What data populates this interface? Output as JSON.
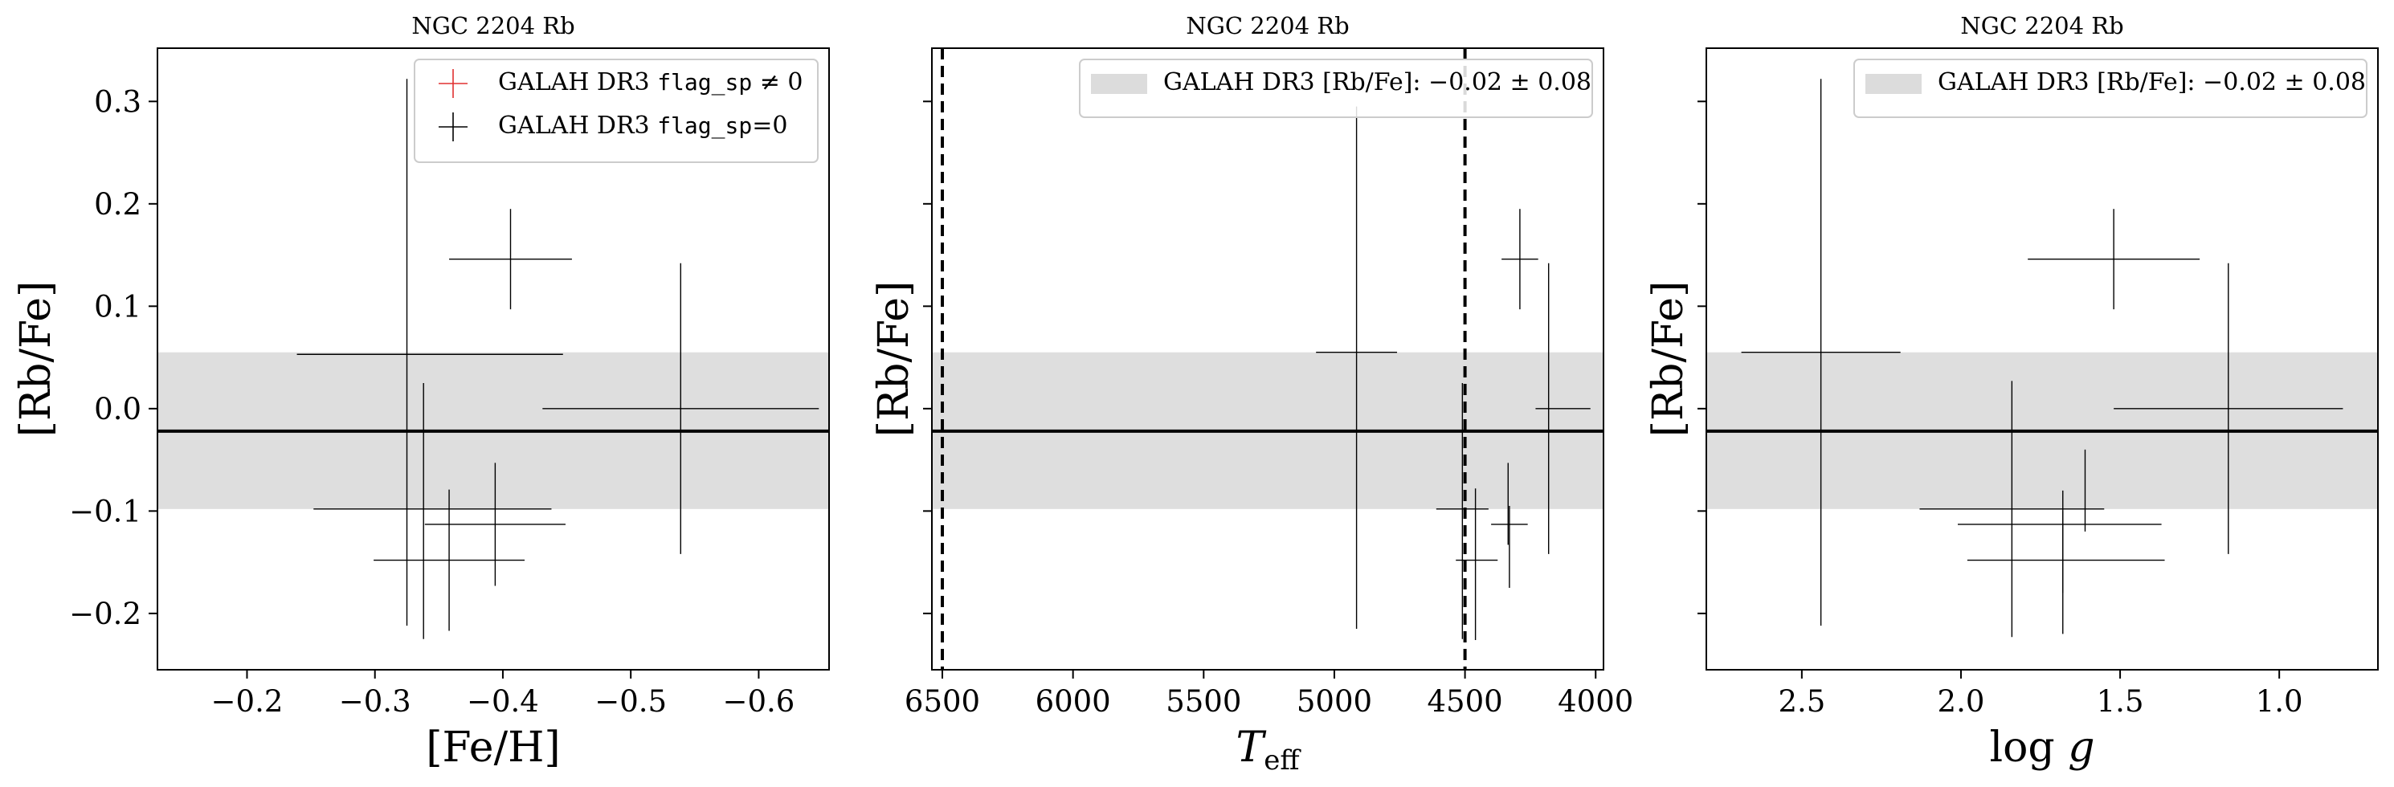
{
  "chart_data": [
    {
      "type": "scatter",
      "title": "NGC 2204 Rb",
      "xlabel": "[Fe/H]",
      "ylabel": "[Rb/Fe]",
      "xlim": [
        -0.13,
        -0.655
      ],
      "ylim": [
        -0.255,
        0.352
      ],
      "xticks": [
        -0.2,
        -0.3,
        -0.4,
        -0.5,
        -0.6
      ],
      "xtick_labels": [
        "−0.2",
        "−0.3",
        "−0.4",
        "−0.5",
        "−0.6"
      ],
      "yticks": [
        -0.2,
        -0.1,
        0.0,
        0.1,
        0.2,
        0.3
      ],
      "ytick_labels": [
        "−0.2",
        "−0.1",
        "0.0",
        "0.1",
        "0.2",
        "0.3"
      ],
      "show_ytick_labels": true,
      "band": {
        "center": -0.022,
        "low": -0.098,
        "high": 0.055
      },
      "vlines": [],
      "legend": {
        "placement": "top-right",
        "entries": [
          {
            "kind": "cross",
            "color": "#e03030",
            "text": "GALAH DR3 ",
            "mono": "flag_sp",
            "suffix": " ≠ 0"
          },
          {
            "kind": "cross",
            "color": "#000000",
            "text": "GALAH DR3 ",
            "mono": "flag_sp",
            "suffix": "=0"
          }
        ]
      },
      "points": [
        {
          "x": -0.326,
          "xerr": 0.0,
          "y": 0.055,
          "yerr": 0.0
        },
        {
          "x": -0.325,
          "xerr": 0.0,
          "y": 0.055,
          "yerr": 0.267
        },
        {
          "x": -0.21,
          "xerr": 0.0,
          "y": 0.055,
          "yerr": 0.0
        },
        {
          "x": -0.343,
          "xerr": 0.104,
          "y": 0.053,
          "yerr": 0.0
        },
        {
          "x": -0.406,
          "xerr": 0.048,
          "y": 0.146,
          "yerr": 0.049
        },
        {
          "x": -0.539,
          "xerr": 0.108,
          "y": 0.0,
          "yerr": 0.142
        },
        {
          "x": -0.338,
          "xerr": 0.0,
          "y": -0.1,
          "yerr": 0.125
        },
        {
          "x": -0.345,
          "xerr": 0.093,
          "y": -0.098,
          "yerr": 0.0
        },
        {
          "x": -0.394,
          "xerr": 0.055,
          "y": -0.113,
          "yerr": 0.06
        },
        {
          "x": -0.32,
          "xerr": 0.0,
          "y": -0.148,
          "yerr": 0.0
        },
        {
          "x": -0.358,
          "xerr": 0.059,
          "y": -0.148,
          "yerr": 0.069
        }
      ]
    },
    {
      "type": "scatter",
      "title": "NGC 2204 Rb",
      "xlabel": "T_eff",
      "ylabel": "[Rb/Fe]",
      "xlim": [
        6540,
        3970
      ],
      "ylim": [
        -0.255,
        0.352
      ],
      "xticks": [
        6500,
        6000,
        5500,
        5000,
        4500,
        4000
      ],
      "xtick_labels": [
        "6500",
        "6000",
        "5500",
        "5000",
        "4500",
        "4000"
      ],
      "yticks": [
        -0.2,
        -0.1,
        0.0,
        0.1,
        0.2,
        0.3
      ],
      "ytick_labels": [
        "−0.2",
        "−0.1",
        "0.0",
        "0.1",
        "0.2",
        "0.3"
      ],
      "show_ytick_labels": false,
      "band": {
        "center": -0.022,
        "low": -0.098,
        "high": 0.055
      },
      "vlines": [
        6500,
        4500
      ],
      "legend": {
        "placement": "top-right",
        "entries": [
          {
            "kind": "band",
            "color": "#dcdcdc",
            "text": "GALAH DR3 [Rb/Fe]: −0.02 ± 0.08",
            "mono": "",
            "suffix": ""
          }
        ]
      },
      "points": [
        {
          "x": 4915,
          "xerr": 155,
          "y": 0.055,
          "yerr": 0.0
        },
        {
          "x": 4915,
          "xerr": 0,
          "y": 0.04,
          "yerr": 0.255
        },
        {
          "x": 4290,
          "xerr": 70,
          "y": 0.146,
          "yerr": 0.049
        },
        {
          "x": 4180,
          "xerr": 0,
          "y": 0.0,
          "yerr": 0.142
        },
        {
          "x": 4125,
          "xerr": 105,
          "y": 0.0,
          "yerr": 0.0
        },
        {
          "x": 4510,
          "xerr": 0,
          "y": -0.1,
          "yerr": 0.125
        },
        {
          "x": 4510,
          "xerr": 100,
          "y": -0.098,
          "yerr": 0.0
        },
        {
          "x": 4335,
          "xerr": 0,
          "y": -0.093,
          "yerr": 0.04
        },
        {
          "x": 4330,
          "xerr": 70,
          "y": -0.113,
          "yerr": 0.0
        },
        {
          "x": 4330,
          "xerr": 0,
          "y": -0.135,
          "yerr": 0.04
        },
        {
          "x": 4460,
          "xerr": 0,
          "y": -0.152,
          "yerr": 0.074
        },
        {
          "x": 4455,
          "xerr": 80,
          "y": -0.148,
          "yerr": 0.0
        }
      ]
    },
    {
      "type": "scatter",
      "title": "NGC 2204 Rb",
      "xlabel": "log g",
      "ylabel": "[Rb/Fe]",
      "xlim": [
        2.8,
        0.69
      ],
      "ylim": [
        -0.255,
        0.352
      ],
      "xticks": [
        2.5,
        2.0,
        1.5,
        1.0
      ],
      "xtick_labels": [
        "2.5",
        "2.0",
        "1.5",
        "1.0"
      ],
      "yticks": [
        -0.2,
        -0.1,
        0.0,
        0.1,
        0.2,
        0.3
      ],
      "ytick_labels": [
        "−0.2",
        "−0.1",
        "0.0",
        "0.1",
        "0.2",
        "0.3"
      ],
      "show_ytick_labels": false,
      "band": {
        "center": -0.022,
        "low": -0.098,
        "high": 0.055
      },
      "vlines": [],
      "legend": {
        "placement": "top-right",
        "entries": [
          {
            "kind": "band",
            "color": "#dcdcdc",
            "text": "GALAH DR3 [Rb/Fe]: −0.02 ± 0.08",
            "mono": "",
            "suffix": ""
          }
        ]
      },
      "points": [
        {
          "x": 2.44,
          "xerr": 0.25,
          "y": 0.055,
          "yerr": 0.267
        },
        {
          "x": 1.52,
          "xerr": 0.27,
          "y": 0.146,
          "yerr": 0.049
        },
        {
          "x": 1.16,
          "xerr": 0.36,
          "y": 0.0,
          "yerr": 0.142
        },
        {
          "x": 1.84,
          "xerr": 0.29,
          "y": -0.098,
          "yerr": 0.125
        },
        {
          "x": 1.68,
          "xerr": 0.0,
          "y": -0.13,
          "yerr": 0.05
        },
        {
          "x": 1.61,
          "xerr": 0.0,
          "y": -0.08,
          "yerr": 0.04
        },
        {
          "x": 1.69,
          "xerr": 0.32,
          "y": -0.113,
          "yerr": 0.0
        },
        {
          "x": 1.68,
          "xerr": 0.0,
          "y": -0.16,
          "yerr": 0.06
        },
        {
          "x": 1.67,
          "xerr": 0.31,
          "y": -0.148,
          "yerr": 0.0
        }
      ]
    }
  ]
}
